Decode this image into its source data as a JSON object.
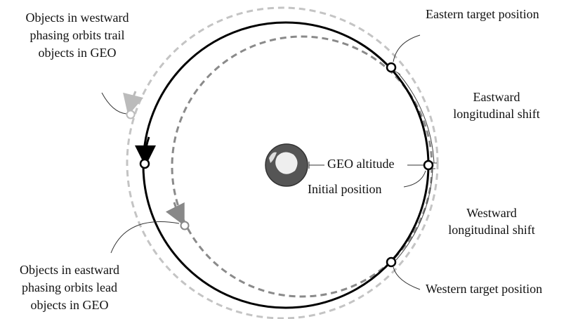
{
  "labels": {
    "eastern_target": "Eastern target position",
    "eastward_shift": [
      "Eastward",
      "longitudinal shift"
    ],
    "geo_altitude": "GEO altitude",
    "initial_position": "Initial position",
    "westward_shift": [
      "Westward",
      "longitudinal shift"
    ],
    "western_target": "Western target position",
    "westward_phasing": [
      "Objects in westward",
      "phasing orbits trail",
      "objects in GEO"
    ],
    "eastward_phasing": [
      "Objects in eastward",
      "phasing orbits lead",
      "objects in GEO"
    ]
  }
}
